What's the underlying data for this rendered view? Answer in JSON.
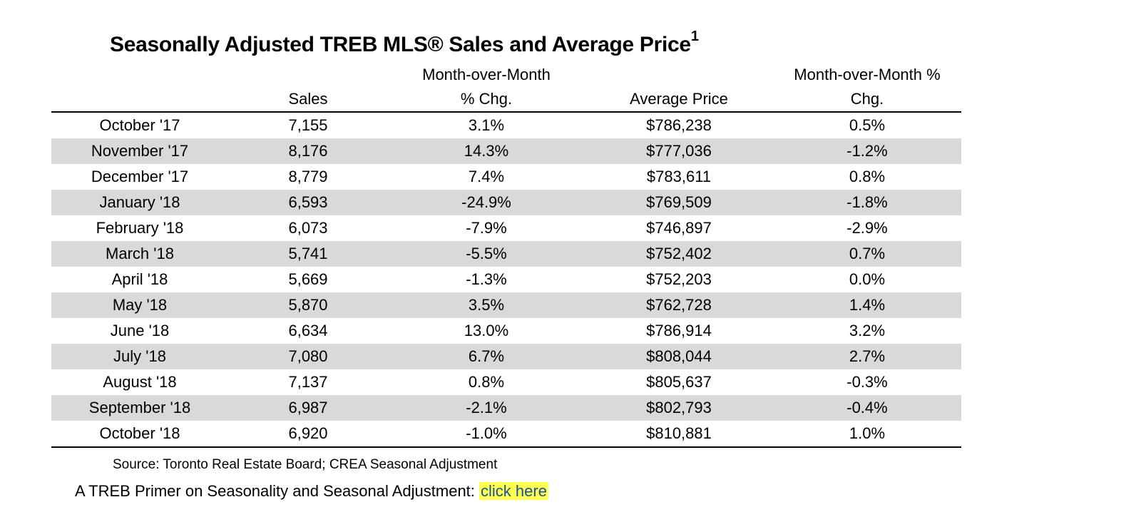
{
  "title": {
    "text": "Seasonally Adjusted TREB MLS® Sales and Average Price",
    "superscript": "1"
  },
  "table": {
    "headers_top": [
      "",
      "",
      "Month-over-Month",
      "",
      "Month-over-Month %"
    ],
    "headers_bottom": [
      "",
      "Sales",
      "% Chg.",
      "Average Price",
      "Chg."
    ],
    "rows": [
      [
        "October '17",
        "7,155",
        "3.1%",
        "$786,238",
        "0.5%"
      ],
      [
        "November '17",
        "8,176",
        "14.3%",
        "$777,036",
        "-1.2%"
      ],
      [
        "December '17",
        "8,779",
        "7.4%",
        "$783,611",
        "0.8%"
      ],
      [
        "January '18",
        "6,593",
        "-24.9%",
        "$769,509",
        "-1.8%"
      ],
      [
        "February '18",
        "6,073",
        "-7.9%",
        "$746,897",
        "-2.9%"
      ],
      [
        "March '18",
        "5,741",
        "-5.5%",
        "$752,402",
        "0.7%"
      ],
      [
        "April '18",
        "5,669",
        "-1.3%",
        "$752,203",
        "0.0%"
      ],
      [
        "May '18",
        "5,870",
        "3.5%",
        "$762,728",
        "1.4%"
      ],
      [
        "June '18",
        "6,634",
        "13.0%",
        "$786,914",
        "3.2%"
      ],
      [
        "July '18",
        "7,080",
        "6.7%",
        "$808,044",
        "2.7%"
      ],
      [
        "August '18",
        "7,137",
        "0.8%",
        "$805,637",
        "-0.3%"
      ],
      [
        "September '18",
        "6,987",
        "-2.1%",
        "$802,793",
        "-0.4%"
      ],
      [
        "October '18",
        "6,920",
        "-1.0%",
        "$810,881",
        "1.0%"
      ]
    ]
  },
  "footer": {
    "source": "Source: Toronto Real Estate Board; CREA Seasonal Adjustment",
    "primer_text": "A TREB Primer on Seasonality and Seasonal Adjustment: ",
    "primer_link": "click here"
  },
  "colors": {
    "alt_row": "#d9d9d9",
    "link_highlight": "#ffff4d",
    "link_text": "#1f4fa0"
  }
}
